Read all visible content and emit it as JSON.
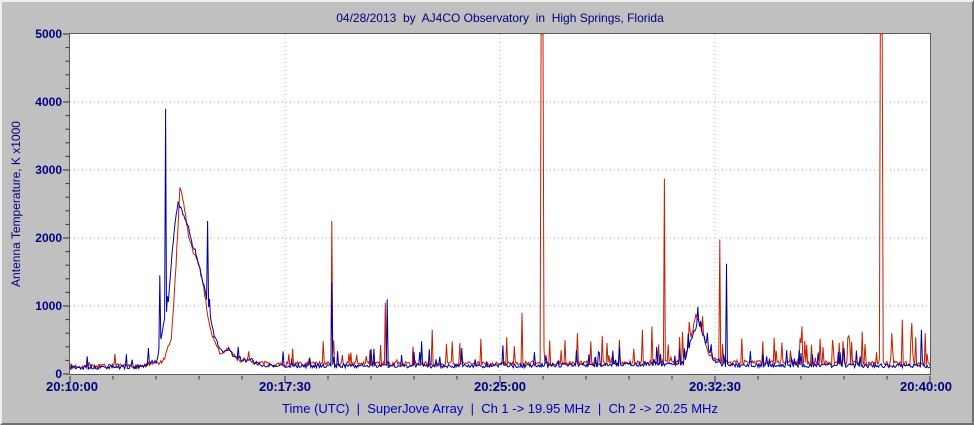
{
  "window": {
    "background": "#c0c0c0"
  },
  "title": "04/28/2013  by  AJ4CO Observatory  in  High Springs, Florida",
  "footer": "Time (UTC)  |  SuperJove Array  |  Ch 1 -> 19.95 MHz  |  Ch 2 -> 20.25 MHz",
  "colors": {
    "title": "#000080",
    "tick_label": "#000080",
    "footer": "#0000bb",
    "plot_bg": "#ffffff",
    "plot_border": "#5a5a5a",
    "grid": "#b5b5b5",
    "tick": "#303030",
    "series_red": "#c42000",
    "series_blue": "#0000a8"
  },
  "y_axis": {
    "title": "Antenna Temperature, K x1000",
    "tick_labels": [
      "0",
      "1000",
      "2000",
      "3000",
      "4000",
      "5000"
    ],
    "major_step": 1000,
    "minor_step": 200,
    "max": 5000
  },
  "x_axis": {
    "tick_labels": [
      "20:10:00",
      "20:17:30",
      "20:25:00",
      "20:32:30",
      "20:40:00"
    ],
    "major_seconds": [
      0,
      450,
      900,
      1350,
      1800
    ],
    "minor_step_seconds": 90,
    "span_seconds": 1800
  },
  "chart_data": {
    "type": "line",
    "title": "04/28/2013 by AJ4CO Observatory in High Springs, Florida",
    "xlabel": "Time (UTC)",
    "ylabel": "Antenna Temperature, K x1000",
    "ylim": [
      0,
      5000
    ],
    "x_range_utc": [
      "20:10:00",
      "20:40:00"
    ],
    "x_unit": "seconds after 20:10:00 UTC",
    "grid": true,
    "legend": "none (channels identified in footer caption)",
    "series": [
      {
        "name": "Ch 1 -> 19.95 MHz",
        "color_key": "series_red",
        "seed": 7,
        "noise": 35,
        "envelope": [
          [
            0,
            110
          ],
          [
            150,
            115
          ],
          [
            195,
            180
          ],
          [
            212,
            500
          ],
          [
            222,
            1600
          ],
          [
            230,
            2750
          ],
          [
            238,
            2500
          ],
          [
            248,
            2050
          ],
          [
            258,
            1800
          ],
          [
            268,
            1650
          ],
          [
            278,
            1350
          ],
          [
            290,
            800
          ],
          [
            300,
            520
          ],
          [
            312,
            330
          ],
          [
            322,
            300
          ],
          [
            330,
            380
          ],
          [
            342,
            280
          ],
          [
            355,
            200
          ],
          [
            370,
            220
          ],
          [
            385,
            170
          ],
          [
            420,
            145
          ],
          [
            900,
            150
          ],
          [
            1280,
            170
          ],
          [
            1298,
            450
          ],
          [
            1310,
            880
          ],
          [
            1322,
            650
          ],
          [
            1338,
            300
          ],
          [
            1360,
            180
          ],
          [
            1800,
            150
          ]
        ],
        "texture": [
          {
            "from": 0,
            "to": 450,
            "prob": 0.03,
            "min": 50,
            "max": 250
          },
          {
            "from": 450,
            "to": 1800,
            "prob": 0.1,
            "min": 60,
            "max": 380
          }
        ],
        "spikes": [
          [
            548,
            2250
          ],
          [
            659,
            1050
          ],
          [
            757,
            650
          ],
          [
            800,
            480
          ],
          [
            860,
            520
          ],
          [
            914,
            540
          ],
          [
            945,
            900
          ],
          [
            987,
            5000,
            "wide"
          ],
          [
            1035,
            500
          ],
          [
            1061,
            600
          ],
          [
            1090,
            480
          ],
          [
            1113,
            560
          ],
          [
            1150,
            500
          ],
          [
            1197,
            650
          ],
          [
            1218,
            700
          ],
          [
            1244,
            2870
          ],
          [
            1281,
            620
          ],
          [
            1359,
            1980
          ],
          [
            1406,
            520
          ],
          [
            1450,
            480
          ],
          [
            1490,
            460
          ],
          [
            1532,
            700
          ],
          [
            1570,
            520
          ],
          [
            1595,
            500
          ],
          [
            1630,
            560
          ],
          [
            1658,
            620
          ],
          [
            1698,
            5000,
            "wide"
          ],
          [
            1720,
            600
          ],
          [
            1741,
            800
          ],
          [
            1762,
            750
          ],
          [
            1790,
            600
          ]
        ]
      },
      {
        "name": "Ch 2 -> 20.25 MHz",
        "color_key": "series_blue",
        "seed": 13,
        "noise": 30,
        "envelope": [
          [
            0,
            95
          ],
          [
            150,
            105
          ],
          [
            182,
            200
          ],
          [
            195,
            700
          ],
          [
            205,
            1000
          ],
          [
            215,
            1900
          ],
          [
            226,
            2550
          ],
          [
            236,
            2350
          ],
          [
            248,
            2150
          ],
          [
            258,
            1850
          ],
          [
            270,
            1600
          ],
          [
            282,
            1250
          ],
          [
            292,
            900
          ],
          [
            302,
            560
          ],
          [
            312,
            380
          ],
          [
            322,
            330
          ],
          [
            332,
            360
          ],
          [
            345,
            250
          ],
          [
            360,
            190
          ],
          [
            378,
            210
          ],
          [
            395,
            140
          ],
          [
            430,
            120
          ],
          [
            900,
            120
          ],
          [
            1285,
            150
          ],
          [
            1302,
            550
          ],
          [
            1315,
            780
          ],
          [
            1328,
            520
          ],
          [
            1345,
            220
          ],
          [
            1365,
            130
          ],
          [
            1800,
            120
          ]
        ],
        "texture": [
          {
            "from": 0,
            "to": 450,
            "prob": 0.04,
            "min": 40,
            "max": 250
          },
          {
            "from": 450,
            "to": 1800,
            "prob": 0.07,
            "min": 40,
            "max": 260
          }
        ],
        "spikes": [
          [
            188,
            1450
          ],
          [
            199,
            3900
          ],
          [
            287,
            2250
          ],
          [
            548,
            1350
          ],
          [
            663,
            1100
          ],
          [
            736,
            480
          ],
          [
            820,
            380
          ],
          [
            905,
            420
          ],
          [
            1060,
            350
          ],
          [
            1150,
            400
          ],
          [
            1374,
            1620
          ],
          [
            1500,
            350
          ],
          [
            1620,
            380
          ],
          [
            1782,
            650
          ]
        ]
      }
    ]
  }
}
